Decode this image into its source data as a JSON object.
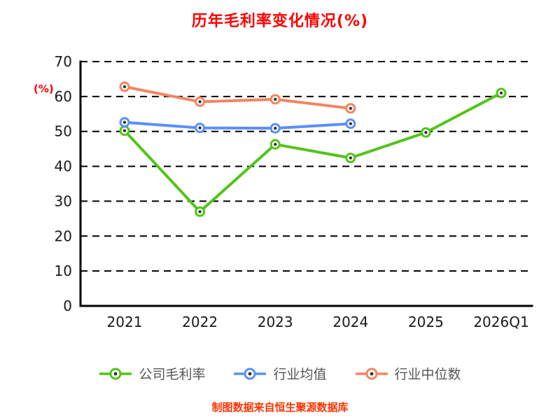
{
  "chart_data": {
    "type": "line",
    "title": "历年毛利率变化情况(%)",
    "ylabel": "(%)",
    "footnote": "制图数据来自恒生聚源数据库",
    "categories": [
      "2021",
      "2022",
      "2023",
      "2024",
      "2025",
      "2026Q1"
    ],
    "series": [
      {
        "name": "公司毛利率",
        "color": "#52c41a",
        "values": [
          50.2,
          27.0,
          46.3,
          42.4,
          49.7,
          61.0
        ]
      },
      {
        "name": "行业均值",
        "color": "#5b8ff9",
        "values": [
          52.6,
          51.0,
          50.9,
          52.2,
          null,
          null
        ]
      },
      {
        "name": "行业中位数",
        "color": "#f4845f",
        "values": [
          62.8,
          58.5,
          59.2,
          56.6,
          null,
          null
        ]
      }
    ],
    "ylim": [
      0,
      70
    ],
    "yticks": [
      0,
      10,
      20,
      30,
      40,
      50,
      60,
      70
    ],
    "grid": true,
    "legend_position": "bottom",
    "colors": {
      "title": "#ff0000",
      "ylabel": "#ff0000",
      "footnote": "#ff3300",
      "axis_line": "#000000",
      "axis_text": "#1a1a1a",
      "gridline": "#000000",
      "legend_text": "#555555",
      "marker_center": "#333333"
    }
  }
}
